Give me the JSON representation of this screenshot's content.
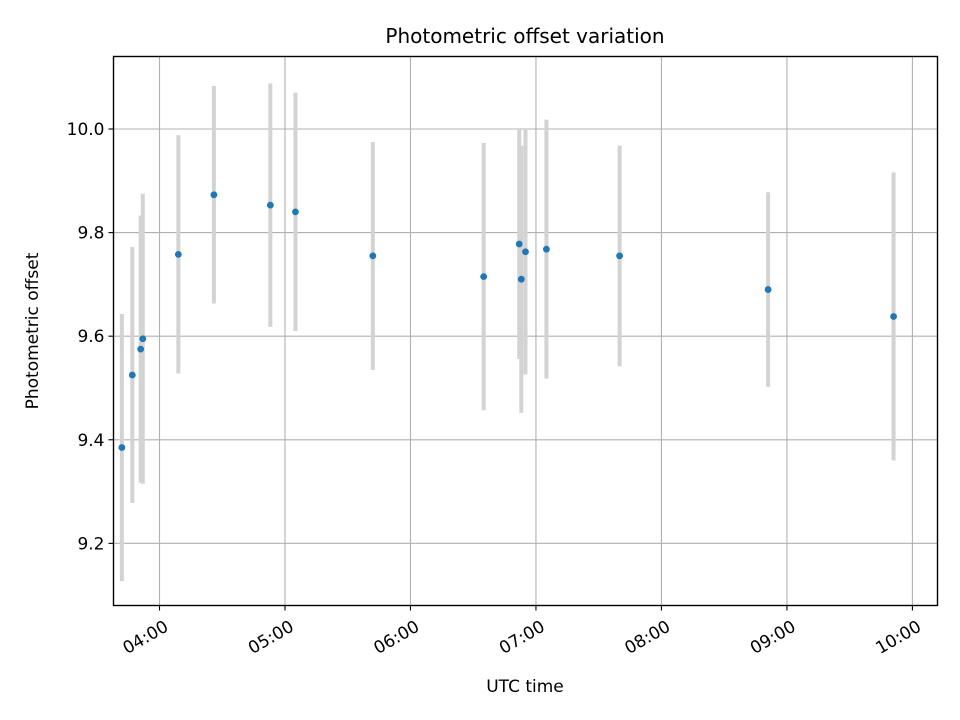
{
  "chart_data": {
    "type": "scatter",
    "title": "Photometric offset variation",
    "xlabel": "UTC time",
    "ylabel": "Photometric offset",
    "xlim": [
      "03:38",
      "10:12"
    ],
    "ylim": [
      9.08,
      10.14
    ],
    "x_ticks": [
      "04:00",
      "05:00",
      "06:00",
      "07:00",
      "08:00",
      "09:00",
      "10:00"
    ],
    "y_ticks": [
      "9.2",
      "9.4",
      "9.6",
      "9.8",
      "10.0"
    ],
    "grid": true,
    "marker_color": "#1f77b4",
    "errorbar_color": "#d3d3d3",
    "points": [
      {
        "x": "03:42",
        "y": 9.385,
        "yerr": 0.258
      },
      {
        "x": "03:47",
        "y": 9.525,
        "yerr": 0.247
      },
      {
        "x": "03:51",
        "y": 9.575,
        "yerr": 0.258
      },
      {
        "x": "03:52",
        "y": 9.595,
        "yerr": 0.28
      },
      {
        "x": "04:09",
        "y": 9.758,
        "yerr": 0.23
      },
      {
        "x": "04:26",
        "y": 9.873,
        "yerr": 0.21
      },
      {
        "x": "04:53",
        "y": 9.853,
        "yerr": 0.235
      },
      {
        "x": "05:05",
        "y": 9.84,
        "yerr": 0.23
      },
      {
        "x": "05:42",
        "y": 9.755,
        "yerr": 0.22
      },
      {
        "x": "06:35",
        "y": 9.715,
        "yerr": 0.258
      },
      {
        "x": "06:52",
        "y": 9.778,
        "yerr": 0.222
      },
      {
        "x": "06:53",
        "y": 9.71,
        "yerr": 0.258
      },
      {
        "x": "06:55",
        "y": 9.763,
        "yerr": 0.237
      },
      {
        "x": "07:05",
        "y": 9.768,
        "yerr": 0.25
      },
      {
        "x": "07:40",
        "y": 9.755,
        "yerr": 0.213
      },
      {
        "x": "08:51",
        "y": 9.69,
        "yerr": 0.188
      },
      {
        "x": "09:51",
        "y": 9.638,
        "yerr": 0.278
      }
    ]
  }
}
